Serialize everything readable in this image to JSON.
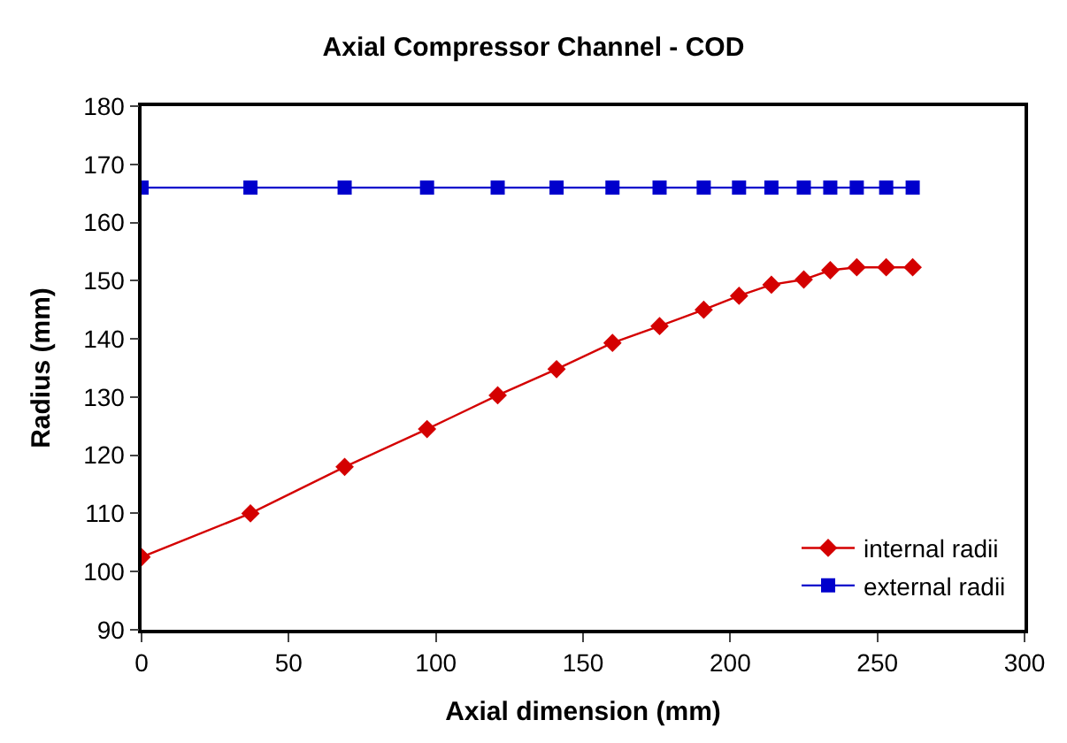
{
  "chart_data": {
    "type": "line",
    "title": "Axial Compressor Channel - COD",
    "xlabel": "Axial dimension (mm)",
    "ylabel": "Radius (mm)",
    "x": [
      0,
      37,
      69,
      97,
      121,
      141,
      160,
      176,
      191,
      203,
      214,
      225,
      234,
      243,
      253,
      262
    ],
    "series": [
      {
        "name": "internal radii",
        "color": "#d40000",
        "marker": "diamond",
        "values": [
          102.5,
          110,
          118,
          124.5,
          130.3,
          134.8,
          139.3,
          142.2,
          145,
          147.4,
          149.3,
          150.2,
          151.8,
          152.3,
          152.3,
          152.3
        ]
      },
      {
        "name": "external radii",
        "color": "#0000cc",
        "marker": "square",
        "values": [
          166,
          166,
          166,
          166,
          166,
          166,
          166,
          166,
          166,
          166,
          166,
          166,
          166,
          166,
          166,
          166
        ]
      }
    ],
    "xlim": [
      0,
      300
    ],
    "xticks": [
      0,
      50,
      100,
      150,
      200,
      250,
      300
    ],
    "ylim": [
      90,
      180
    ],
    "yticks": [
      90,
      100,
      110,
      120,
      130,
      140,
      150,
      160,
      170,
      180
    ],
    "legend": "bottom right"
  }
}
